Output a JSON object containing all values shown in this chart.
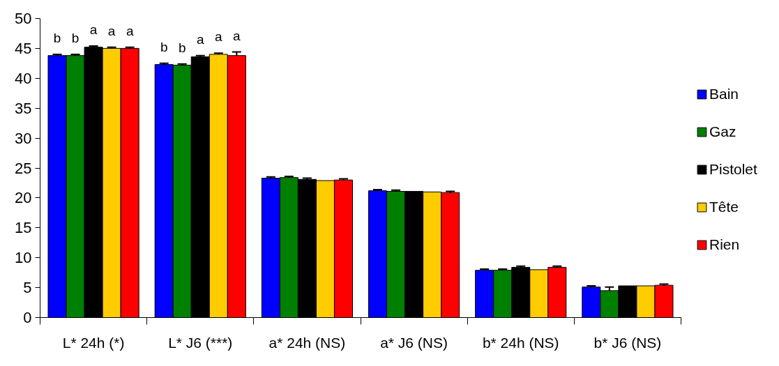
{
  "chart_data": {
    "type": "bar",
    "categories": [
      "L* 24h (*)",
      "L* J6 (***)",
      "a* 24h (NS)",
      "a* J6 (NS)",
      "b* 24h (NS)",
      "b* J6 (NS)"
    ],
    "ylim": [
      0,
      50
    ],
    "yticks": [
      0,
      5,
      10,
      15,
      20,
      25,
      30,
      35,
      40,
      45,
      50
    ],
    "grid": false,
    "legend": "right",
    "series": [
      {
        "name": "Bain",
        "color": "#0000ff",
        "values": [
          43.8,
          42.3,
          23.3,
          21.2,
          7.9,
          5.1
        ],
        "errors": [
          0.2,
          0.2,
          0.2,
          0.2,
          0.2,
          0.2
        ],
        "value_labels": [
          "b",
          "b",
          null,
          null,
          null,
          null
        ]
      },
      {
        "name": "Gaz",
        "color": "#008000",
        "values": [
          43.8,
          42.2,
          23.4,
          21.1,
          7.9,
          4.5
        ],
        "errors": [
          0.2,
          0.2,
          0.2,
          0.2,
          0.2,
          0.6
        ],
        "value_labels": [
          "b",
          "b",
          null,
          null,
          null,
          null
        ]
      },
      {
        "name": "Pistolet",
        "color": "#000000",
        "values": [
          45.2,
          43.6,
          23.1,
          21.1,
          8.4,
          5.3
        ],
        "errors": [
          0.2,
          0.2,
          0.2,
          null,
          0.2,
          null
        ],
        "value_labels": [
          "a",
          "a",
          null,
          null,
          null,
          null
        ]
      },
      {
        "name": "Tête",
        "color": "#ffcc00",
        "values": [
          45.0,
          44.0,
          22.9,
          21.0,
          8.0,
          5.3
        ],
        "errors": [
          0.2,
          0.2,
          null,
          null,
          null,
          null
        ],
        "value_labels": [
          "a",
          "a",
          null,
          null,
          null,
          null
        ]
      },
      {
        "name": "Rien",
        "color": "#ff0000",
        "values": [
          45.0,
          43.8,
          23.0,
          20.9,
          8.4,
          5.4
        ],
        "errors": [
          0.2,
          0.6,
          0.2,
          0.2,
          0.2,
          0.2
        ],
        "value_labels": [
          "a",
          "a",
          null,
          null,
          null,
          null
        ]
      }
    ]
  }
}
